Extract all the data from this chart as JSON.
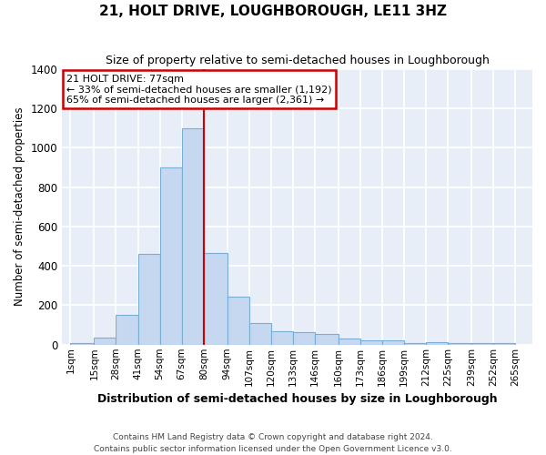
{
  "title": "21, HOLT DRIVE, LOUGHBOROUGH, LE11 3HZ",
  "subtitle": "Size of property relative to semi-detached houses in Loughborough",
  "xlabel": "Distribution of semi-detached houses by size in Loughborough",
  "ylabel": "Number of semi-detached properties",
  "footer1": "Contains HM Land Registry data © Crown copyright and database right 2024.",
  "footer2": "Contains public sector information licensed under the Open Government Licence v3.0.",
  "bins": [
    1,
    15,
    28,
    41,
    54,
    67,
    80,
    94,
    107,
    120,
    133,
    146,
    160,
    173,
    186,
    199,
    212,
    225,
    239,
    252,
    265
  ],
  "bin_labels": [
    "1sqm",
    "15sqm",
    "28sqm",
    "41sqm",
    "54sqm",
    "67sqm",
    "80sqm",
    "94sqm",
    "107sqm",
    "120sqm",
    "133sqm",
    "146sqm",
    "160sqm",
    "173sqm",
    "186sqm",
    "199sqm",
    "212sqm",
    "225sqm",
    "239sqm",
    "252sqm",
    "265sqm"
  ],
  "values": [
    10,
    35,
    150,
    460,
    900,
    1100,
    465,
    245,
    110,
    70,
    65,
    55,
    30,
    20,
    20,
    10,
    15,
    10,
    10,
    10
  ],
  "bar_color": "#c5d8f0",
  "bar_edge_color": "#7aadd4",
  "bg_color": "#e8eef8",
  "grid_color": "#ffffff",
  "property_line": 80,
  "annotation_title": "21 HOLT DRIVE: 77sqm",
  "annotation_line1": "← 33% of semi-detached houses are smaller (1,192)",
  "annotation_line2": "65% of semi-detached houses are larger (2,361) →",
  "annotation_box_color": "#ffffff",
  "annotation_box_edge": "#cc0000",
  "property_line_color": "#cc0000",
  "ylim": [
    0,
    1400
  ],
  "yticks": [
    0,
    200,
    400,
    600,
    800,
    1000,
    1200,
    1400
  ]
}
